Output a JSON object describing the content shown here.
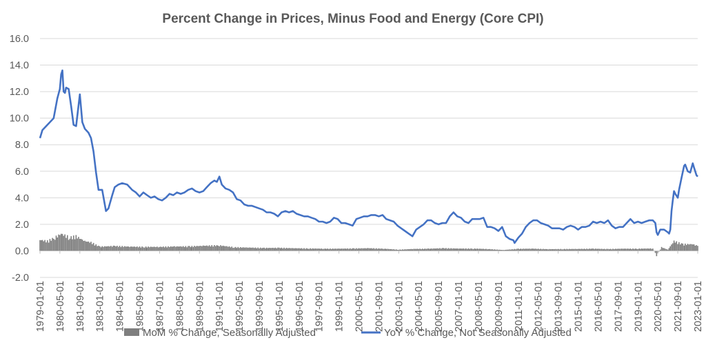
{
  "chart_data": {
    "type": "bar+line",
    "title": "Percent Change in Prices, Minus Food and Energy (Core CPI)",
    "xlabel": "",
    "ylabel": "",
    "ylim": [
      -2.0,
      16.0
    ],
    "y_ticks": [
      "-2.0",
      "0.0",
      "2.0",
      "4.0",
      "6.0",
      "8.0",
      "10.0",
      "12.0",
      "14.0",
      "16.0"
    ],
    "x_start": "1979-01-01",
    "x_end": "2023-01-01",
    "x_ticks": [
      "1979-01-01",
      "1980-05-01",
      "1981-09-01",
      "1983-01-01",
      "1984-05-01",
      "1985-09-01",
      "1987-01-01",
      "1988-05-01",
      "1989-09-01",
      "1991-01-01",
      "1992-05-01",
      "1993-09-01",
      "1995-01-01",
      "1996-05-01",
      "1997-09-01",
      "1999-01-01",
      "2000-05-01",
      "2001-09-01",
      "2003-01-01",
      "2004-05-01",
      "2005-09-01",
      "2007-01-01",
      "2008-05-01",
      "2009-09-01",
      "2011-01-01",
      "2012-05-01",
      "2013-09-01",
      "2015-01-01",
      "2016-05-01",
      "2017-09-01",
      "2019-01-01",
      "2020-05-01",
      "2021-09-01",
      "2023-01-01"
    ],
    "grid": true,
    "legend_position": "bottom",
    "series": [
      {
        "name": "MoM % Change, Seasonally Adjusted",
        "type": "bar",
        "color": "#7f7f7f",
        "points": [
          [
            "1979-01-01",
            0.9
          ],
          [
            "1979-07-01",
            0.8
          ],
          [
            "1980-01-01",
            1.1
          ],
          [
            "1980-06-01",
            1.4
          ],
          [
            "1981-01-01",
            1.1
          ],
          [
            "1981-06-01",
            1.2
          ],
          [
            "1982-01-01",
            0.8
          ],
          [
            "1982-06-01",
            0.7
          ],
          [
            "1983-01-01",
            0.35
          ],
          [
            "1984-01-01",
            0.4
          ],
          [
            "1985-01-01",
            0.35
          ],
          [
            "1986-01-01",
            0.33
          ],
          [
            "1987-01-01",
            0.33
          ],
          [
            "1988-01-01",
            0.36
          ],
          [
            "1989-01-01",
            0.37
          ],
          [
            "1990-01-01",
            0.42
          ],
          [
            "1991-01-01",
            0.45
          ],
          [
            "1992-01-01",
            0.3
          ],
          [
            "1993-01-01",
            0.27
          ],
          [
            "1994-01-01",
            0.24
          ],
          [
            "1995-01-01",
            0.25
          ],
          [
            "1996-01-01",
            0.22
          ],
          [
            "1997-01-01",
            0.2
          ],
          [
            "1998-01-01",
            0.18
          ],
          [
            "1999-01-01",
            0.18
          ],
          [
            "2000-01-01",
            0.2
          ],
          [
            "2001-01-01",
            0.22
          ],
          [
            "2002-01-01",
            0.18
          ],
          [
            "2003-01-01",
            0.1
          ],
          [
            "2004-01-01",
            0.16
          ],
          [
            "2005-01-01",
            0.18
          ],
          [
            "2006-01-01",
            0.22
          ],
          [
            "2007-01-01",
            0.19
          ],
          [
            "2008-01-01",
            0.19
          ],
          [
            "2009-01-01",
            0.15
          ],
          [
            "2010-01-01",
            0.07
          ],
          [
            "2011-01-01",
            0.17
          ],
          [
            "2012-01-01",
            0.18
          ],
          [
            "2013-01-01",
            0.14
          ],
          [
            "2014-01-01",
            0.15
          ],
          [
            "2015-01-01",
            0.16
          ],
          [
            "2016-01-01",
            0.18
          ],
          [
            "2017-01-01",
            0.15
          ],
          [
            "2018-01-01",
            0.18
          ],
          [
            "2019-01-01",
            0.18
          ],
          [
            "2020-01-01",
            0.2
          ],
          [
            "2020-04-01",
            -0.4
          ],
          [
            "2020-08-01",
            0.3
          ],
          [
            "2021-01-01",
            0.1
          ],
          [
            "2021-06-01",
            0.8
          ],
          [
            "2022-01-01",
            0.55
          ],
          [
            "2022-09-01",
            0.55
          ],
          [
            "2023-01-01",
            0.4
          ]
        ]
      },
      {
        "name": "YoY % Change, Not Seasonally Adjusted",
        "type": "line",
        "color": "#4472c4",
        "points": [
          [
            "1979-01-01",
            8.5
          ],
          [
            "1979-03-01",
            9.1
          ],
          [
            "1979-06-01",
            9.4
          ],
          [
            "1979-09-01",
            9.7
          ],
          [
            "1979-12-01",
            10.0
          ],
          [
            "1980-03-01",
            11.5
          ],
          [
            "1980-05-01",
            12.2
          ],
          [
            "1980-06-01",
            13.3
          ],
          [
            "1980-07-01",
            13.6
          ],
          [
            "1980-08-01",
            12.0
          ],
          [
            "1980-09-01",
            11.9
          ],
          [
            "1980-10-01",
            12.3
          ],
          [
            "1980-12-01",
            12.2
          ],
          [
            "1981-02-01",
            10.9
          ],
          [
            "1981-04-01",
            9.5
          ],
          [
            "1981-06-01",
            9.4
          ],
          [
            "1981-08-01",
            11.0
          ],
          [
            "1981-09-01",
            11.8
          ],
          [
            "1981-11-01",
            9.7
          ],
          [
            "1982-01-01",
            9.2
          ],
          [
            "1982-04-01",
            8.9
          ],
          [
            "1982-06-01",
            8.5
          ],
          [
            "1982-08-01",
            7.5
          ],
          [
            "1982-10-01",
            5.9
          ],
          [
            "1982-12-01",
            4.6
          ],
          [
            "1983-03-01",
            4.6
          ],
          [
            "1983-06-01",
            3.0
          ],
          [
            "1983-08-01",
            3.2
          ],
          [
            "1983-11-01",
            4.2
          ],
          [
            "1984-01-01",
            4.8
          ],
          [
            "1984-04-01",
            5.0
          ],
          [
            "1984-07-01",
            5.1
          ],
          [
            "1984-11-01",
            5.0
          ],
          [
            "1985-03-01",
            4.6
          ],
          [
            "1985-06-01",
            4.4
          ],
          [
            "1985-09-01",
            4.1
          ],
          [
            "1985-12-01",
            4.4
          ],
          [
            "1986-03-01",
            4.2
          ],
          [
            "1986-06-01",
            4.0
          ],
          [
            "1986-09-01",
            4.1
          ],
          [
            "1986-12-01",
            3.9
          ],
          [
            "1987-03-01",
            3.8
          ],
          [
            "1987-06-01",
            4.0
          ],
          [
            "1987-09-01",
            4.3
          ],
          [
            "1987-12-01",
            4.2
          ],
          [
            "1988-03-01",
            4.4
          ],
          [
            "1988-06-01",
            4.3
          ],
          [
            "1988-09-01",
            4.4
          ],
          [
            "1988-12-01",
            4.6
          ],
          [
            "1989-03-01",
            4.7
          ],
          [
            "1989-06-01",
            4.5
          ],
          [
            "1989-09-01",
            4.4
          ],
          [
            "1989-12-01",
            4.5
          ],
          [
            "1990-03-01",
            4.8
          ],
          [
            "1990-06-01",
            5.1
          ],
          [
            "1990-09-01",
            5.3
          ],
          [
            "1990-11-01",
            5.2
          ],
          [
            "1991-01-01",
            5.6
          ],
          [
            "1991-03-01",
            5.0
          ],
          [
            "1991-06-01",
            4.7
          ],
          [
            "1991-09-01",
            4.6
          ],
          [
            "1991-12-01",
            4.4
          ],
          [
            "1992-03-01",
            3.9
          ],
          [
            "1992-06-01",
            3.8
          ],
          [
            "1992-09-01",
            3.5
          ],
          [
            "1992-12-01",
            3.4
          ],
          [
            "1993-03-01",
            3.4
          ],
          [
            "1993-06-01",
            3.3
          ],
          [
            "1993-09-01",
            3.2
          ],
          [
            "1993-12-01",
            3.1
          ],
          [
            "1994-03-01",
            2.9
          ],
          [
            "1994-06-01",
            2.9
          ],
          [
            "1994-09-01",
            2.8
          ],
          [
            "1994-12-01",
            2.6
          ],
          [
            "1995-03-01",
            2.9
          ],
          [
            "1995-06-01",
            3.0
          ],
          [
            "1995-09-01",
            2.9
          ],
          [
            "1995-12-01",
            3.0
          ],
          [
            "1996-03-01",
            2.8
          ],
          [
            "1996-06-01",
            2.7
          ],
          [
            "1996-09-01",
            2.6
          ],
          [
            "1996-12-01",
            2.6
          ],
          [
            "1997-03-01",
            2.5
          ],
          [
            "1997-06-01",
            2.4
          ],
          [
            "1997-09-01",
            2.2
          ],
          [
            "1997-12-01",
            2.2
          ],
          [
            "1998-03-01",
            2.1
          ],
          [
            "1998-06-01",
            2.2
          ],
          [
            "1998-09-01",
            2.5
          ],
          [
            "1998-12-01",
            2.4
          ],
          [
            "1999-03-01",
            2.1
          ],
          [
            "1999-06-01",
            2.1
          ],
          [
            "1999-09-01",
            2.0
          ],
          [
            "1999-12-01",
            1.9
          ],
          [
            "2000-03-01",
            2.4
          ],
          [
            "2000-06-01",
            2.5
          ],
          [
            "2000-09-01",
            2.6
          ],
          [
            "2000-12-01",
            2.6
          ],
          [
            "2001-03-01",
            2.7
          ],
          [
            "2001-06-01",
            2.7
          ],
          [
            "2001-09-01",
            2.6
          ],
          [
            "2001-12-01",
            2.7
          ],
          [
            "2002-03-01",
            2.4
          ],
          [
            "2002-06-01",
            2.3
          ],
          [
            "2002-09-01",
            2.2
          ],
          [
            "2002-12-01",
            1.9
          ],
          [
            "2003-03-01",
            1.7
          ],
          [
            "2003-06-01",
            1.5
          ],
          [
            "2003-09-01",
            1.3
          ],
          [
            "2003-12-01",
            1.1
          ],
          [
            "2004-03-01",
            1.6
          ],
          [
            "2004-06-01",
            1.8
          ],
          [
            "2004-09-01",
            2.0
          ],
          [
            "2004-12-01",
            2.3
          ],
          [
            "2005-03-01",
            2.3
          ],
          [
            "2005-06-01",
            2.1
          ],
          [
            "2005-09-01",
            2.0
          ],
          [
            "2005-12-01",
            2.1
          ],
          [
            "2006-03-01",
            2.1
          ],
          [
            "2006-06-01",
            2.6
          ],
          [
            "2006-09-01",
            2.9
          ],
          [
            "2006-12-01",
            2.6
          ],
          [
            "2007-03-01",
            2.5
          ],
          [
            "2007-06-01",
            2.2
          ],
          [
            "2007-09-01",
            2.1
          ],
          [
            "2007-12-01",
            2.4
          ],
          [
            "2008-03-01",
            2.4
          ],
          [
            "2008-06-01",
            2.4
          ],
          [
            "2008-09-01",
            2.5
          ],
          [
            "2008-12-01",
            1.8
          ],
          [
            "2009-03-01",
            1.8
          ],
          [
            "2009-06-01",
            1.7
          ],
          [
            "2009-09-01",
            1.5
          ],
          [
            "2009-12-01",
            1.8
          ],
          [
            "2010-03-01",
            1.1
          ],
          [
            "2010-06-01",
            0.9
          ],
          [
            "2010-09-01",
            0.8
          ],
          [
            "2010-10-01",
            0.6
          ],
          [
            "2011-01-01",
            1.0
          ],
          [
            "2011-04-01",
            1.3
          ],
          [
            "2011-07-01",
            1.8
          ],
          [
            "2011-10-01",
            2.1
          ],
          [
            "2012-01-01",
            2.3
          ],
          [
            "2012-04-01",
            2.3
          ],
          [
            "2012-07-01",
            2.1
          ],
          [
            "2012-10-01",
            2.0
          ],
          [
            "2013-01-01",
            1.9
          ],
          [
            "2013-04-01",
            1.7
          ],
          [
            "2013-07-01",
            1.7
          ],
          [
            "2013-10-01",
            1.7
          ],
          [
            "2014-01-01",
            1.6
          ],
          [
            "2014-04-01",
            1.8
          ],
          [
            "2014-07-01",
            1.9
          ],
          [
            "2014-10-01",
            1.8
          ],
          [
            "2015-01-01",
            1.6
          ],
          [
            "2015-04-01",
            1.8
          ],
          [
            "2015-07-01",
            1.8
          ],
          [
            "2015-10-01",
            1.9
          ],
          [
            "2016-01-01",
            2.2
          ],
          [
            "2016-04-01",
            2.1
          ],
          [
            "2016-07-01",
            2.2
          ],
          [
            "2016-10-01",
            2.1
          ],
          [
            "2017-01-01",
            2.3
          ],
          [
            "2017-04-01",
            1.9
          ],
          [
            "2017-07-01",
            1.7
          ],
          [
            "2017-10-01",
            1.8
          ],
          [
            "2018-01-01",
            1.8
          ],
          [
            "2018-04-01",
            2.1
          ],
          [
            "2018-07-01",
            2.4
          ],
          [
            "2018-10-01",
            2.1
          ],
          [
            "2019-01-01",
            2.2
          ],
          [
            "2019-04-01",
            2.1
          ],
          [
            "2019-07-01",
            2.2
          ],
          [
            "2019-10-01",
            2.3
          ],
          [
            "2020-01-01",
            2.3
          ],
          [
            "2020-03-01",
            2.1
          ],
          [
            "2020-04-01",
            1.4
          ],
          [
            "2020-05-01",
            1.2
          ],
          [
            "2020-07-01",
            1.6
          ],
          [
            "2020-10-01",
            1.6
          ],
          [
            "2021-01-01",
            1.4
          ],
          [
            "2021-02-01",
            1.3
          ],
          [
            "2021-03-01",
            1.6
          ],
          [
            "2021-04-01",
            3.0
          ],
          [
            "2021-05-01",
            3.8
          ],
          [
            "2021-06-01",
            4.5
          ],
          [
            "2021-07-01",
            4.3
          ],
          [
            "2021-09-01",
            4.0
          ],
          [
            "2021-10-01",
            4.6
          ],
          [
            "2021-12-01",
            5.5
          ],
          [
            "2022-02-01",
            6.4
          ],
          [
            "2022-03-01",
            6.5
          ],
          [
            "2022-05-01",
            6.0
          ],
          [
            "2022-07-01",
            5.9
          ],
          [
            "2022-09-01",
            6.6
          ],
          [
            "2022-10-01",
            6.3
          ],
          [
            "2022-12-01",
            5.7
          ],
          [
            "2023-01-01",
            5.6
          ]
        ]
      }
    ]
  }
}
